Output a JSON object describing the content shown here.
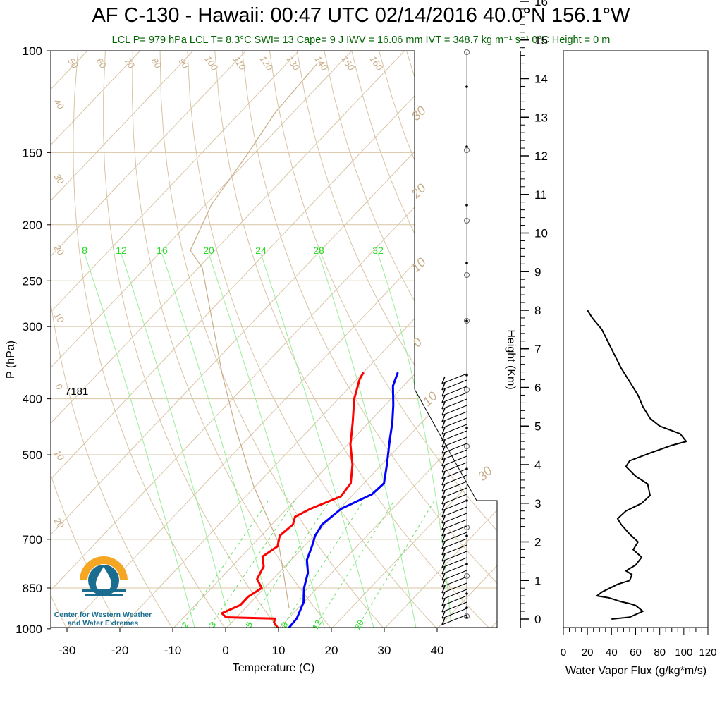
{
  "title": "AF C-130 - Hawaii: 00:47 UTC 02/14/2016  40.0°N 156.1°W",
  "subtitle": "LCL P= 979 hPa  LCL T= 8.3°C  SWI= 13  Cape= 9 J  IWV = 16.06 mm  IVT = 348.7 kg m⁻¹ s⁻¹  0°C Height = 0 m",
  "logo": {
    "text_line1": "Center for Western Weather",
    "text_line2": "and Water Extremes",
    "icon": "water-drop-sun-logo"
  },
  "chart_data": [
    {
      "type": "line",
      "subtype": "skew-t",
      "xlabel": "Temperature (C)",
      "ylabel": "P (hPa)",
      "xlim": [
        -35,
        50
      ],
      "ylim": [
        1040,
        100
      ],
      "x_ticks": [
        -30,
        -20,
        -10,
        0,
        10,
        20,
        30,
        40
      ],
      "y_ticks": [
        100,
        150,
        200,
        250,
        300,
        400,
        500,
        700,
        850,
        1000
      ],
      "annotation": "7181",
      "adiabat_labels_top": [
        "50",
        "60",
        "70",
        "80",
        "90",
        "100",
        "110",
        "120",
        "130",
        "140",
        "150",
        "160"
      ],
      "adiabat_labels_left": [
        "40",
        "30",
        "20",
        "10",
        "0",
        "10",
        "20"
      ],
      "adiabat_labels_right": [
        "30",
        "20",
        "10",
        "0",
        "10",
        "30"
      ],
      "mixing_ratio_labels_top": [
        "8",
        "12",
        "16",
        "20",
        "24",
        "28",
        "32"
      ],
      "mixing_ratio_labels_bottom": [
        "2",
        "3",
        "5",
        "8",
        "12",
        "20"
      ],
      "colors": {
        "temperature": "#0000ff",
        "dewpoint": "#ff0000",
        "isopleths": "#c8ad88",
        "mixing_ratio": "#22dd22"
      },
      "series": [
        {
          "color": "#0000ff",
          "points": [
            [
              11.8,
              1000
            ],
            [
              11.6,
              960
            ],
            [
              10.0,
              900
            ],
            [
              7.5,
              850
            ],
            [
              5.5,
              800
            ],
            [
              3.0,
              760
            ],
            [
              1.5,
              720
            ],
            [
              0.2,
              690
            ],
            [
              -0.5,
              660
            ],
            [
              0.3,
              620
            ],
            [
              3.5,
              585
            ],
            [
              3.8,
              560
            ],
            [
              1.0,
              520
            ],
            [
              -3.0,
              470
            ],
            [
              -5.5,
              440
            ],
            [
              -8.5,
              410
            ],
            [
              -12.0,
              380
            ],
            [
              -13.5,
              360
            ]
          ]
        },
        {
          "color": "#ff0000",
          "points": [
            [
              10.0,
              1000
            ],
            [
              8.0,
              975
            ],
            [
              7.5,
              960
            ],
            [
              -2.0,
              955
            ],
            [
              -3.5,
              940
            ],
            [
              -1.5,
              910
            ],
            [
              -1.5,
              880
            ],
            [
              -0.5,
              850
            ],
            [
              -3.0,
              820
            ],
            [
              -4.0,
              780
            ],
            [
              -6.0,
              750
            ],
            [
              -5.0,
              720
            ],
            [
              -6.5,
              690
            ],
            [
              -6.0,
              660
            ],
            [
              -7.0,
              640
            ],
            [
              -5.5,
              620
            ],
            [
              -2.0,
              590
            ],
            [
              -2.5,
              560
            ],
            [
              -5.5,
              520
            ],
            [
              -9.5,
              480
            ],
            [
              -13.0,
              440
            ],
            [
              -17.0,
              400
            ],
            [
              -19.5,
              370
            ],
            [
              -20.0,
              360
            ]
          ]
        }
      ]
    },
    {
      "type": "line",
      "xlabel": "Water Vapor Flux (g/kg*m/s)",
      "ylabel": "Height (Km)",
      "xlim": [
        0,
        120
      ],
      "ylim": [
        -0.2,
        16.4
      ],
      "x_ticks": [
        0,
        20,
        40,
        60,
        80,
        100,
        120
      ],
      "y_ticks": [
        0,
        1,
        2,
        3,
        4,
        5,
        6,
        7,
        8,
        9,
        10,
        11,
        12,
        13,
        14,
        15,
        16
      ],
      "series": [
        {
          "color": "#000000",
          "points": [
            [
              40,
              0.0
            ],
            [
              55,
              0.05
            ],
            [
              66,
              0.2
            ],
            [
              60,
              0.35
            ],
            [
              55,
              0.4
            ],
            [
              48,
              0.45
            ],
            [
              38,
              0.55
            ],
            [
              28,
              0.6
            ],
            [
              32,
              0.7
            ],
            [
              45,
              0.9
            ],
            [
              55,
              1.0
            ],
            [
              57,
              1.15
            ],
            [
              52,
              1.25
            ],
            [
              60,
              1.4
            ],
            [
              65,
              1.6
            ],
            [
              58,
              1.8
            ],
            [
              62,
              2.0
            ],
            [
              55,
              2.2
            ],
            [
              48,
              2.45
            ],
            [
              45,
              2.6
            ],
            [
              52,
              2.8
            ],
            [
              65,
              3.0
            ],
            [
              72,
              3.2
            ],
            [
              70,
              3.5
            ],
            [
              60,
              3.7
            ],
            [
              52,
              3.95
            ],
            [
              55,
              4.1
            ],
            [
              72,
              4.3
            ],
            [
              90,
              4.5
            ],
            [
              102,
              4.6
            ],
            [
              97,
              4.8
            ],
            [
              80,
              5.0
            ],
            [
              72,
              5.2
            ],
            [
              66,
              5.5
            ],
            [
              62,
              5.8
            ],
            [
              58,
              6.0
            ],
            [
              48,
              6.5
            ],
            [
              40,
              7.0
            ],
            [
              32,
              7.5
            ],
            [
              24,
              7.8
            ],
            [
              20,
              8.0
            ]
          ]
        }
      ]
    }
  ]
}
